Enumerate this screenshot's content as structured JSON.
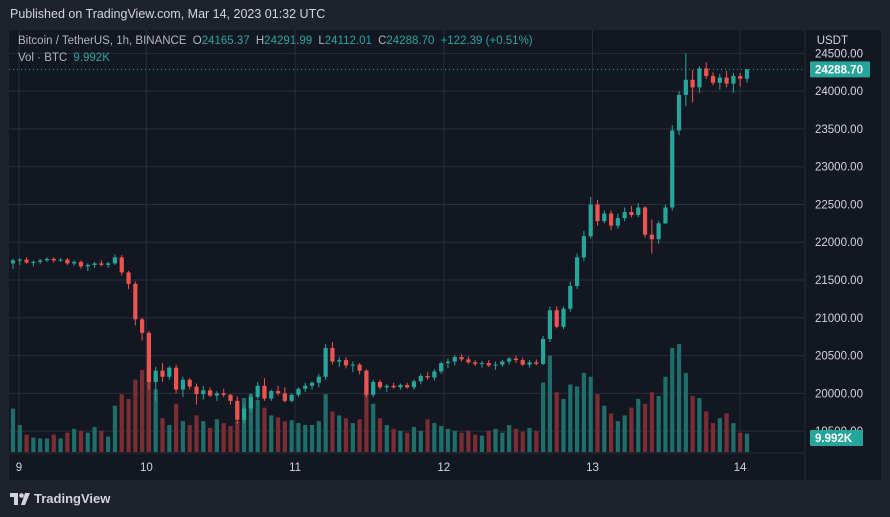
{
  "header": {
    "published": "Published on TradingView.com, Mar 14, 2023 01:32 UTC"
  },
  "legend": {
    "symbol": "Bitcoin / TetherUS, 1h, BINANCE",
    "open_label": "O",
    "open": "24165.37",
    "high_label": "H",
    "high": "24291.99",
    "low_label": "L",
    "low": "24112.01",
    "close_label": "C",
    "close": "24288.70",
    "change": "+122.39 (+0.51%)",
    "volume_label": "Vol · BTC",
    "volume": "9.992K"
  },
  "price_axis": {
    "currency": "USDT",
    "ticks": [
      "24500.00",
      "24000.00",
      "23500.00",
      "23000.00",
      "22500.00",
      "22000.00",
      "21500.00",
      "21000.00",
      "20500.00",
      "20000.00",
      "19500.00"
    ],
    "last_price_label": "24288.70",
    "volume_label": "9.992K"
  },
  "time_axis": {
    "ticks": [
      "9",
      "10",
      "11",
      "12",
      "13",
      "14"
    ]
  },
  "footer": {
    "brand": "TradingView"
  },
  "colors": {
    "up": "#26a69a",
    "down": "#ef5350",
    "up_volume": "#1f6e6a",
    "down_volume": "#7a2e33",
    "background": "#131722",
    "grid": "#2a2e39"
  },
  "chart_data": {
    "type": "candlestick",
    "symbol": "BTCUSDT",
    "interval": "1h",
    "ylim": [
      19250,
      24750
    ],
    "x_ticks": [
      "9",
      "10",
      "11",
      "12",
      "13",
      "14"
    ],
    "last_price": 24288.7,
    "candles_ohlc": [
      [
        21720,
        21780,
        21650,
        21760
      ],
      [
        21760,
        21790,
        21700,
        21770
      ],
      [
        21770,
        21800,
        21720,
        21730
      ],
      [
        21730,
        21760,
        21680,
        21740
      ],
      [
        21740,
        21780,
        21710,
        21760
      ],
      [
        21760,
        21800,
        21740,
        21780
      ],
      [
        21780,
        21800,
        21730,
        21760
      ],
      [
        21760,
        21790,
        21740,
        21770
      ],
      [
        21770,
        21790,
        21700,
        21720
      ],
      [
        21720,
        21760,
        21690,
        21740
      ],
      [
        21740,
        21760,
        21650,
        21680
      ],
      [
        21680,
        21720,
        21620,
        21700
      ],
      [
        21700,
        21740,
        21660,
        21720
      ],
      [
        21720,
        21760,
        21680,
        21700
      ],
      [
        21700,
        21740,
        21660,
        21720
      ],
      [
        21720,
        21840,
        21700,
        21800
      ],
      [
        21800,
        21830,
        21560,
        21600
      ],
      [
        21600,
        21620,
        21380,
        21450
      ],
      [
        21450,
        21480,
        20900,
        20980
      ],
      [
        20980,
        21000,
        20700,
        20800
      ],
      [
        20800,
        20830,
        20050,
        20150
      ],
      [
        20150,
        20350,
        19900,
        20300
      ],
      [
        20300,
        20400,
        20150,
        20220
      ],
      [
        20220,
        20360,
        20180,
        20340
      ],
      [
        20340,
        20380,
        20000,
        20050
      ],
      [
        20050,
        20220,
        19950,
        20180
      ],
      [
        20180,
        20200,
        20050,
        20090
      ],
      [
        20090,
        20130,
        19850,
        19990
      ],
      [
        19990,
        20100,
        19920,
        20040
      ],
      [
        20040,
        20080,
        19950,
        19970
      ],
      [
        19970,
        20030,
        19900,
        20000
      ],
      [
        20000,
        20060,
        19950,
        19980
      ],
      [
        19980,
        19990,
        19850,
        19900
      ],
      [
        19900,
        19960,
        19600,
        19650
      ],
      [
        19650,
        19850,
        19600,
        19800
      ],
      [
        19800,
        20000,
        19750,
        19950
      ],
      [
        19950,
        20150,
        19920,
        20100
      ],
      [
        20100,
        20200,
        19900,
        19930
      ],
      [
        19930,
        20050,
        19900,
        20030
      ],
      [
        20030,
        20100,
        19970,
        20000
      ],
      [
        20000,
        20080,
        19880,
        19900
      ],
      [
        19900,
        20000,
        19880,
        19980
      ],
      [
        19980,
        20080,
        19950,
        20060
      ],
      [
        20060,
        20140,
        20020,
        20100
      ],
      [
        20100,
        20160,
        20050,
        20140
      ],
      [
        20140,
        20260,
        20080,
        20220
      ],
      [
        20220,
        20650,
        20180,
        20600
      ],
      [
        20600,
        20680,
        20380,
        20420
      ],
      [
        20420,
        20480,
        20350,
        20440
      ],
      [
        20440,
        20480,
        20330,
        20370
      ],
      [
        20370,
        20420,
        20280,
        20380
      ],
      [
        20380,
        20400,
        20250,
        20300
      ],
      [
        20300,
        20320,
        19950,
        19980
      ],
      [
        19980,
        20180,
        19950,
        20150
      ],
      [
        20150,
        20180,
        20050,
        20080
      ],
      [
        20080,
        20120,
        20020,
        20100
      ],
      [
        20100,
        20140,
        20060,
        20080
      ],
      [
        20080,
        20130,
        20050,
        20110
      ],
      [
        20110,
        20140,
        20060,
        20080
      ],
      [
        20080,
        20180,
        20050,
        20160
      ],
      [
        20160,
        20260,
        20120,
        20230
      ],
      [
        20230,
        20280,
        20180,
        20210
      ],
      [
        20210,
        20320,
        20170,
        20290
      ],
      [
        20290,
        20420,
        20260,
        20400
      ],
      [
        20400,
        20460,
        20330,
        20420
      ],
      [
        20420,
        20510,
        20370,
        20480
      ],
      [
        20480,
        20520,
        20420,
        20450
      ],
      [
        20450,
        20490,
        20390,
        20410
      ],
      [
        20410,
        20440,
        20360,
        20390
      ],
      [
        20390,
        20430,
        20340,
        20400
      ],
      [
        20400,
        20440,
        20350,
        20370
      ],
      [
        20370,
        20420,
        20310,
        20380
      ],
      [
        20380,
        20440,
        20350,
        20420
      ],
      [
        20420,
        20480,
        20380,
        20460
      ],
      [
        20460,
        20500,
        20400,
        20440
      ],
      [
        20440,
        20470,
        20360,
        20380
      ],
      [
        20380,
        20440,
        20340,
        20410
      ],
      [
        20410,
        20450,
        20370,
        20390
      ],
      [
        20390,
        20760,
        20370,
        20720
      ],
      [
        20720,
        21150,
        20680,
        21100
      ],
      [
        21100,
        21150,
        20860,
        20880
      ],
      [
        20880,
        21150,
        20850,
        21120
      ],
      [
        21120,
        21480,
        21080,
        21420
      ],
      [
        21420,
        21850,
        21380,
        21800
      ],
      [
        21800,
        22150,
        21750,
        22080
      ],
      [
        22080,
        22600,
        22050,
        22500
      ],
      [
        22500,
        22560,
        22220,
        22280
      ],
      [
        22280,
        22420,
        22250,
        22380
      ],
      [
        22380,
        22420,
        22160,
        22220
      ],
      [
        22220,
        22380,
        22180,
        22320
      ],
      [
        22320,
        22460,
        22280,
        22400
      ],
      [
        22400,
        22480,
        22330,
        22360
      ],
      [
        22360,
        22520,
        22330,
        22460
      ],
      [
        22460,
        22480,
        22060,
        22100
      ],
      [
        22100,
        22300,
        21850,
        22040
      ],
      [
        22040,
        22280,
        21980,
        22250
      ],
      [
        22250,
        22500,
        22240,
        22460
      ],
      [
        22460,
        23550,
        22420,
        23480
      ],
      [
        23480,
        24000,
        23420,
        23950
      ],
      [
        23950,
        24500,
        23800,
        24150
      ],
      [
        24150,
        24280,
        23850,
        24050
      ],
      [
        24050,
        24330,
        23980,
        24300
      ],
      [
        24300,
        24380,
        24160,
        24200
      ],
      [
        24200,
        24250,
        24080,
        24110
      ],
      [
        24110,
        24230,
        24020,
        24180
      ],
      [
        24180,
        24270,
        24050,
        24100
      ],
      [
        24100,
        24240,
        23980,
        24200
      ],
      [
        24200,
        24240,
        24060,
        24165
      ],
      [
        24165.37,
        24291.99,
        24112.01,
        24288.7
      ]
    ],
    "volumes_relative": [
      0.45,
      0.28,
      0.18,
      0.15,
      0.14,
      0.14,
      0.18,
      0.14,
      0.2,
      0.24,
      0.22,
      0.2,
      0.26,
      0.22,
      0.16,
      0.48,
      0.6,
      0.55,
      0.75,
      0.85,
      0.8,
      0.65,
      0.35,
      0.28,
      0.5,
      0.32,
      0.28,
      0.38,
      0.32,
      0.25,
      0.34,
      0.3,
      0.27,
      0.32,
      0.56,
      0.6,
      0.54,
      0.46,
      0.38,
      0.36,
      0.32,
      0.33,
      0.3,
      0.28,
      0.28,
      0.32,
      0.6,
      0.42,
      0.38,
      0.35,
      0.3,
      0.34,
      0.65,
      0.5,
      0.35,
      0.28,
      0.24,
      0.22,
      0.2,
      0.26,
      0.22,
      0.34,
      0.3,
      0.27,
      0.24,
      0.22,
      0.2,
      0.22,
      0.18,
      0.17,
      0.22,
      0.24,
      0.2,
      0.28,
      0.24,
      0.21,
      0.25,
      0.22,
      0.72,
      1.0,
      0.62,
      0.55,
      0.7,
      0.68,
      0.82,
      0.78,
      0.6,
      0.48,
      0.4,
      0.32,
      0.38,
      0.46,
      0.55,
      0.5,
      0.62,
      0.58,
      0.78,
      1.08,
      1.12,
      0.82,
      0.58,
      0.56,
      0.42,
      0.3,
      0.35,
      0.4,
      0.3,
      0.2,
      0.19
    ]
  }
}
